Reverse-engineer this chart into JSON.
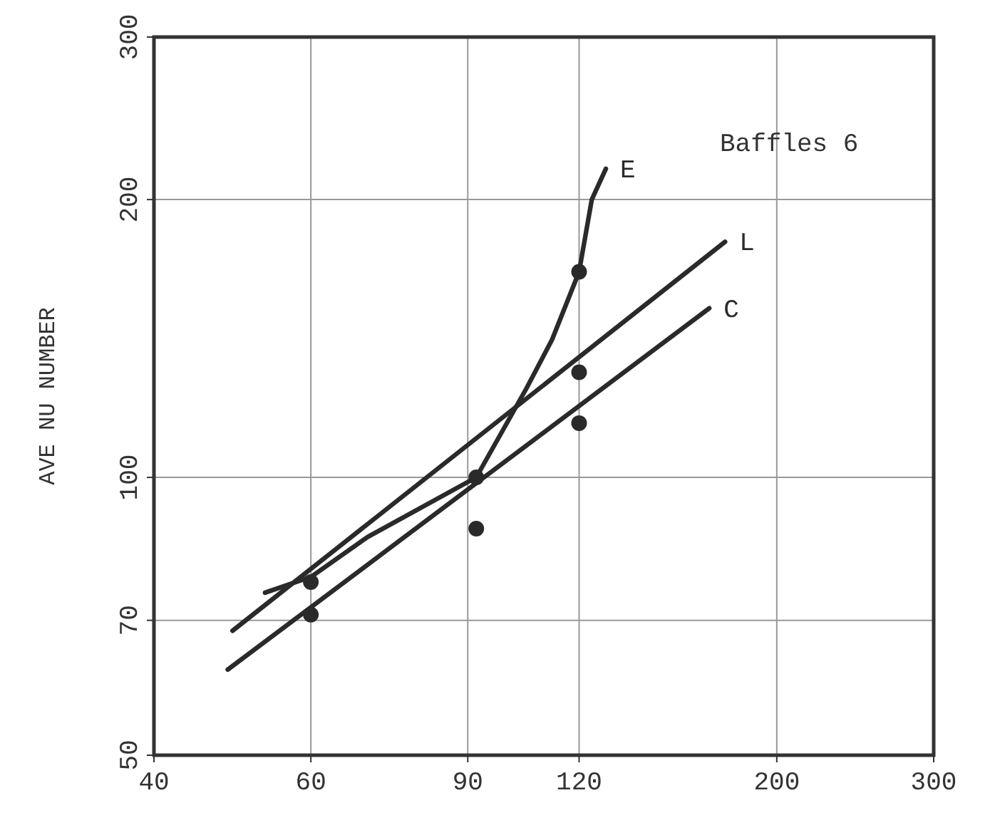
{
  "chart_data": {
    "type": "line",
    "ylabel": "AVE NU NUMBER",
    "annotations": [
      "Baffles 6"
    ],
    "log": "xy",
    "grid": true,
    "marker": "none",
    "xlim": [
      40,
      300
    ],
    "xticks": [
      40,
      60,
      90,
      120,
      200,
      300
    ],
    "ylim": [
      50,
      300
    ],
    "yticks": [
      50,
      70,
      100,
      200,
      300
    ],
    "series": [
      {
        "name": "E",
        "color": "#2a2a2a",
        "x": [
          53.3,
          60,
          69.5,
          92,
          104.8,
          111.9,
          120,
          124,
          128.6
        ],
        "values": [
          75,
          78,
          86.2,
          100,
          125,
          141,
          167,
          200,
          216
        ]
      },
      {
        "name": "L",
        "color": "#2a2a2a",
        "x": [
          49,
          175
        ],
        "values": [
          68.2,
          180
        ]
      },
      {
        "name": "C",
        "color": "#2a2a2a",
        "x": [
          48.4,
          168
        ],
        "values": [
          61.9,
          152.5
        ]
      },
      {
        "color": "#2a2a2a",
        "type": "scatter",
        "marker": "circle",
        "x": [
          120
        ],
        "values": [
          167
        ]
      },
      {
        "color": "#2a2a2a",
        "type": "scatter",
        "marker": "circle",
        "x": [
          60,
          92,
          120
        ],
        "values": [
          77,
          100,
          130
        ]
      },
      {
        "color": "#2a2a2a",
        "type": "scatter",
        "marker": "circle",
        "x": [
          60,
          92,
          120
        ],
        "values": [
          71,
          88,
          114.5
        ]
      }
    ]
  }
}
